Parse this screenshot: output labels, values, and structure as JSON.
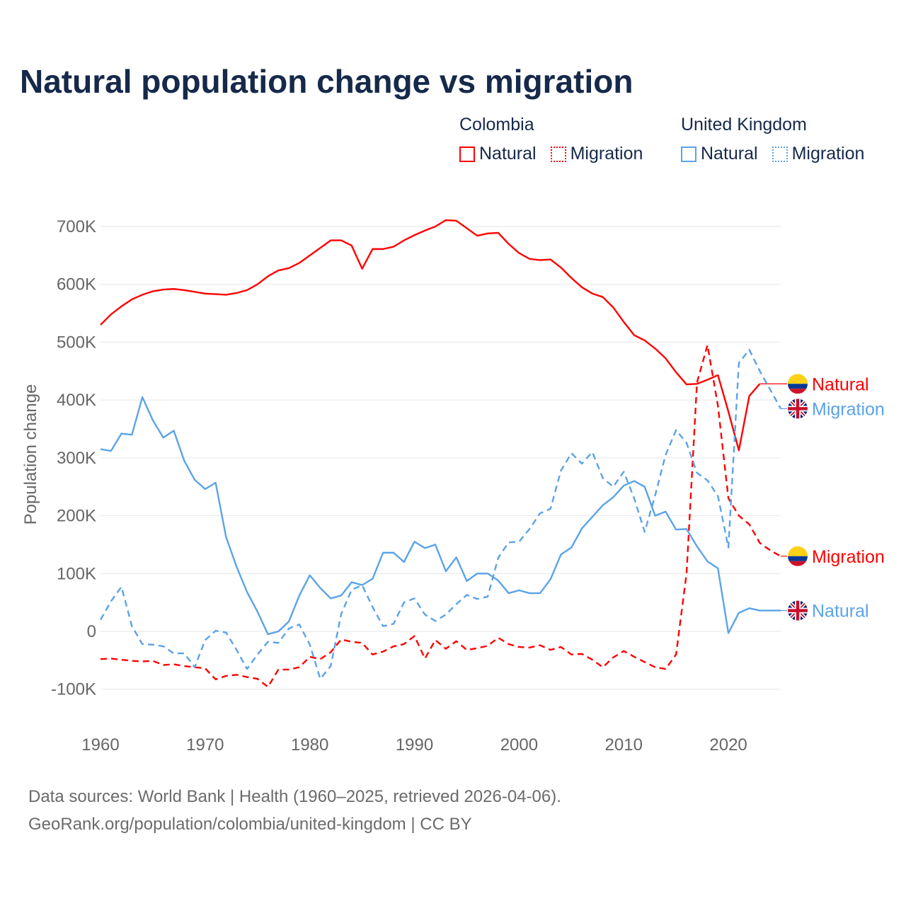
{
  "title": "Natural population change vs migration",
  "legend": {
    "groups": [
      {
        "title": "Colombia",
        "items": [
          {
            "label": "Natural",
            "style": "solid"
          },
          {
            "label": "Migration",
            "style": "dotted"
          }
        ],
        "color": "#ff0000"
      },
      {
        "title": "United Kingdom",
        "items": [
          {
            "label": "Natural",
            "style": "solid"
          },
          {
            "label": "Migration",
            "style": "dotted"
          }
        ],
        "color": "#5ba3e8"
      }
    ]
  },
  "source": {
    "line1": "Data sources: World Bank | Health (1960–2025, retrieved 2026-04-06).",
    "line2": "GeoRank.org/population/colombia/united-kingdom | CC BY"
  },
  "chart_data": {
    "type": "line",
    "title": "Natural population change vs migration",
    "xlabel": "",
    "ylabel": "Population change",
    "xlim": [
      1960,
      2025
    ],
    "ylim": [
      -100000,
      700000
    ],
    "x_ticks": [
      1960,
      1970,
      1980,
      1990,
      2000,
      2010,
      2020
    ],
    "y_ticks": [
      -100000,
      0,
      100000,
      200000,
      300000,
      400000,
      500000,
      600000,
      700000
    ],
    "y_tick_labels": [
      "-100K",
      "0",
      "100K",
      "200K",
      "300K",
      "400K",
      "500K",
      "600K",
      "700K"
    ],
    "grid": true,
    "series": [
      {
        "name": "Colombia Natural",
        "end_label": "Natural",
        "flag": "colombia",
        "color": "#ff0000",
        "dash": "solid",
        "start": 1960,
        "values_k": [
          530,
          548,
          562,
          574,
          582,
          588,
          591,
          592,
          590,
          587,
          584,
          583,
          582,
          585,
          590,
          600,
          614,
          624,
          628,
          637,
          650,
          663,
          676,
          676,
          667,
          627,
          661,
          661,
          665,
          676,
          685,
          693,
          700,
          711,
          710,
          697,
          684,
          688,
          689,
          670,
          654,
          644,
          642,
          643,
          629,
          611,
          595,
          584,
          578,
          560,
          535,
          512,
          503,
          489,
          472,
          448,
          427,
          428,
          435,
          443,
          380,
          313,
          407,
          428
        ]
      },
      {
        "name": "Colombia Migration",
        "end_label": "Migration",
        "flag": "colombia",
        "color": "#ff0000",
        "dash": "dashed",
        "start": 1960,
        "values_k": [
          -48,
          -47,
          -49,
          -51,
          -52,
          -51,
          -58,
          -57,
          -60,
          -62,
          -64,
          -83,
          -77,
          -75,
          -79,
          -82,
          -96,
          -66,
          -66,
          -62,
          -44,
          -48,
          -36,
          -14,
          -18,
          -20,
          -40,
          -35,
          -26,
          -22,
          -8,
          -47,
          -15,
          -30,
          -17,
          -32,
          -29,
          -25,
          -11,
          -22,
          -27,
          -28,
          -24,
          -32,
          -27,
          -40,
          -39,
          -49,
          -62,
          -45,
          -34,
          -44,
          -53,
          -62,
          -65,
          -40,
          100,
          430,
          495,
          390,
          230,
          200,
          185,
          153,
          140,
          130
        ]
      },
      {
        "name": "United Kingdom Natural",
        "end_label": "Natural",
        "flag": "uk",
        "color": "#5ba3e8",
        "dash": "solid",
        "start": 1960,
        "values_k": [
          315,
          312,
          342,
          340,
          405,
          365,
          335,
          347,
          295,
          262,
          246,
          257,
          163,
          112,
          68,
          34,
          -5,
          0,
          17,
          62,
          97,
          75,
          57,
          62,
          85,
          80,
          91,
          136,
          136,
          120,
          155,
          144,
          150,
          104,
          128,
          87,
          100,
          100,
          88,
          66,
          71,
          66,
          66,
          90,
          133,
          145,
          178,
          198,
          218,
          232,
          252,
          260,
          250,
          200,
          207,
          176,
          177,
          147,
          121,
          109,
          -3,
          32,
          40,
          36,
          36,
          36
        ]
      },
      {
        "name": "United Kingdom Migration",
        "end_label": "Migration",
        "flag": "uk",
        "color": "#5ba3e8",
        "dash": "dashed",
        "start": 1960,
        "values_k": [
          20,
          52,
          77,
          9,
          -22,
          -23,
          -26,
          -38,
          -38,
          -62,
          -15,
          1,
          -2,
          -32,
          -65,
          -40,
          -18,
          -20,
          5,
          12,
          -23,
          -82,
          -60,
          30,
          72,
          80,
          42,
          9,
          13,
          50,
          57,
          29,
          18,
          29,
          47,
          63,
          56,
          60,
          127,
          154,
          155,
          177,
          204,
          212,
          278,
          308,
          290,
          310,
          265,
          250,
          276,
          230,
          172,
          235,
          305,
          348,
          326,
          274,
          261,
          234,
          145,
          464,
          487,
          450,
          418,
          385
        ]
      }
    ]
  }
}
